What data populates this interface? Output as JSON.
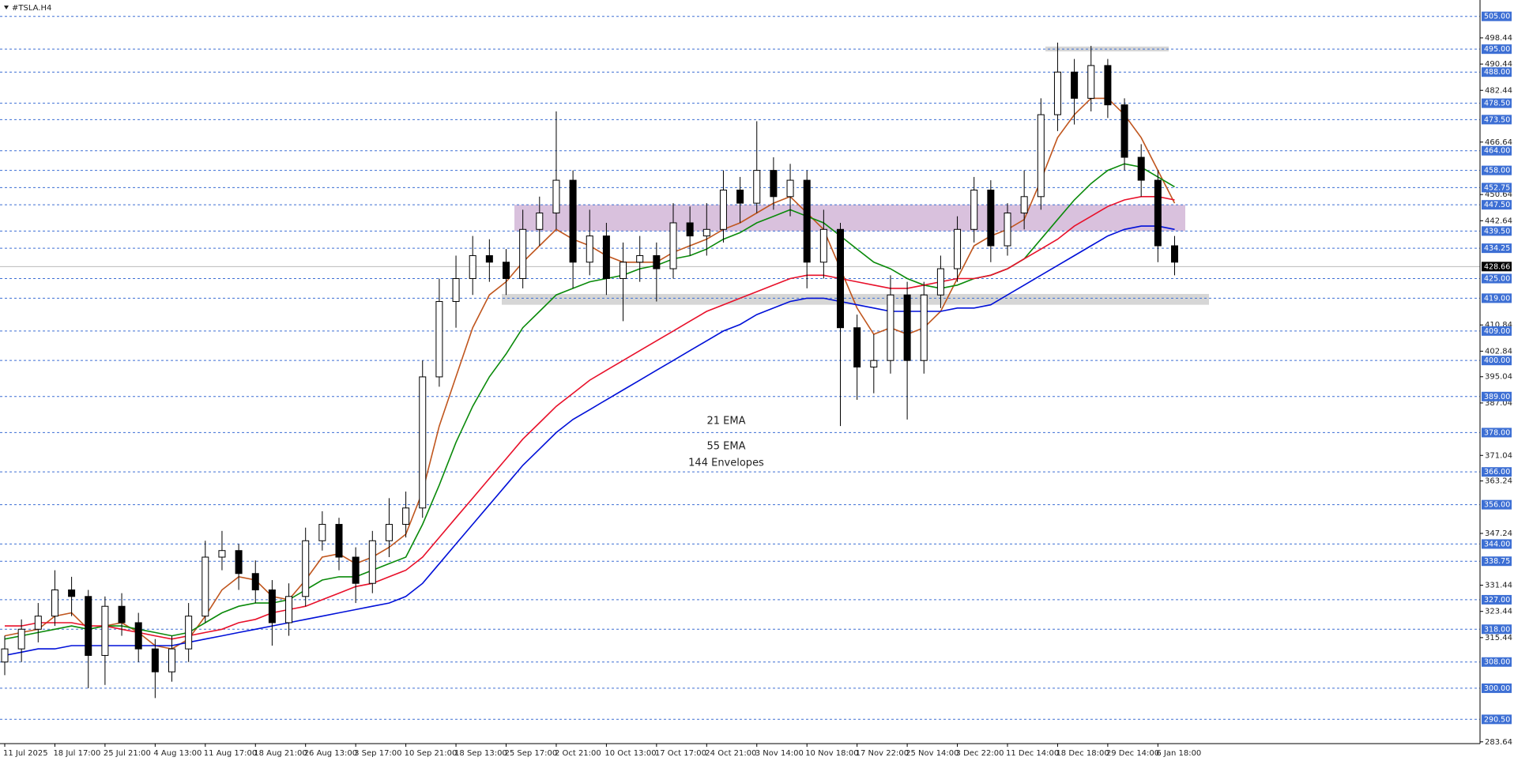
{
  "chart_data": {
    "type": "candlestick",
    "title": "#TSLA.H4",
    "categories": [
      "11 Jul 2025",
      null,
      null,
      "18 Jul 17:00",
      null,
      null,
      "25 Jul 21:00",
      null,
      null,
      "4 Aug 13:00",
      null,
      null,
      "11 Aug 17:00",
      null,
      null,
      "18 Aug 21:00",
      null,
      null,
      "26 Aug 13:00",
      null,
      null,
      "3 Sep 17:00",
      null,
      null,
      "10 Sep 21:00",
      null,
      null,
      "18 Sep 13:00",
      null,
      null,
      "25 Sep 17:00",
      null,
      null,
      "2 Oct 21:00",
      null,
      null,
      "10 Oct 13:00",
      null,
      null,
      "17 Oct 17:00",
      null,
      null,
      "24 Oct 21:00",
      null,
      null,
      "3 Nov 14:00",
      null,
      null,
      "10 Nov 18:00",
      null,
      null,
      "17 Nov 22:00",
      null,
      null,
      "25 Nov 14:00",
      null,
      null,
      "3 Dec 22:00",
      null,
      null,
      "11 Dec 14:00",
      null,
      null,
      "18 Dec 18:00",
      null,
      null,
      "29 Dec 14:00",
      null,
      null,
      "6 Jan 18:00",
      null
    ],
    "open": [
      308,
      312,
      318,
      322,
      330,
      328,
      310,
      325,
      320,
      312,
      305,
      312,
      322,
      340,
      342,
      335,
      330,
      320,
      328,
      345,
      350,
      340,
      332,
      345,
      350,
      355,
      395,
      418,
      425,
      432,
      430,
      425,
      440,
      445,
      455,
      430,
      438,
      425,
      430,
      432,
      428,
      442,
      438,
      440,
      452,
      448,
      458,
      450,
      455,
      430,
      440,
      410,
      398,
      400,
      420,
      400,
      420,
      428,
      440,
      452,
      435,
      445,
      450,
      475,
      488,
      480,
      490,
      478,
      462,
      455,
      435
    ],
    "high": [
      316,
      321,
      326,
      336,
      334,
      330,
      328,
      329,
      323,
      315,
      316,
      326,
      345,
      348,
      344,
      339,
      333,
      332,
      349,
      354,
      352,
      343,
      348,
      358,
      360,
      400,
      425,
      432,
      438,
      437,
      434,
      446,
      450,
      476,
      458,
      446,
      442,
      436,
      438,
      436,
      448,
      447,
      448,
      458,
      456,
      473,
      462,
      460,
      458,
      446,
      442,
      414,
      408,
      426,
      424,
      424,
      432,
      444,
      456,
      455,
      448,
      458,
      480,
      497,
      492,
      496,
      492,
      480,
      466,
      458,
      438
    ],
    "low": [
      304,
      308,
      314,
      319,
      322,
      300,
      301,
      316,
      308,
      297,
      302,
      308,
      320,
      336,
      330,
      326,
      313,
      316,
      325,
      342,
      336,
      326,
      329,
      340,
      346,
      352,
      392,
      410,
      420,
      424,
      420,
      422,
      435,
      440,
      422,
      426,
      420,
      412,
      424,
      418,
      425,
      432,
      432,
      436,
      442,
      445,
      446,
      444,
      422,
      425,
      380,
      388,
      390,
      396,
      382,
      396,
      416,
      424,
      436,
      430,
      432,
      440,
      446,
      470,
      472,
      476,
      474,
      458,
      450,
      430,
      426
    ],
    "close": [
      312,
      318,
      322,
      330,
      328,
      310,
      325,
      320,
      312,
      305,
      312,
      322,
      340,
      342,
      335,
      330,
      320,
      328,
      345,
      350,
      340,
      332,
      345,
      350,
      355,
      395,
      418,
      425,
      432,
      430,
      425,
      440,
      445,
      455,
      430,
      438,
      425,
      430,
      432,
      428,
      442,
      438,
      440,
      452,
      448,
      458,
      450,
      455,
      430,
      440,
      410,
      398,
      400,
      420,
      400,
      420,
      428,
      440,
      452,
      435,
      445,
      450,
      475,
      488,
      480,
      490,
      478,
      462,
      455,
      435,
      430
    ],
    "series": [
      {
        "name": "21 EMA",
        "color": "#c0561e",
        "values": [
          316,
          317,
          318,
          322,
          323,
          318,
          319,
          320,
          317,
          313,
          312,
          315,
          322,
          330,
          334,
          333,
          328,
          327,
          333,
          340,
          341,
          338,
          340,
          343,
          347,
          360,
          380,
          395,
          410,
          420,
          424,
          430,
          435,
          440,
          437,
          435,
          432,
          430,
          430,
          430,
          433,
          435,
          437,
          440,
          442,
          445,
          448,
          450,
          445,
          440,
          428,
          416,
          408,
          410,
          408,
          410,
          415,
          425,
          435,
          438,
          440,
          443,
          455,
          468,
          475,
          480,
          480,
          475,
          468,
          458,
          448
        ]
      },
      {
        "name": "55 EMA",
        "color": "#0a8a0a",
        "values": [
          315,
          316,
          317,
          318,
          319,
          318,
          319,
          319,
          318,
          317,
          316,
          317,
          320,
          323,
          325,
          326,
          326,
          327,
          330,
          333,
          334,
          334,
          336,
          338,
          340,
          350,
          362,
          375,
          386,
          395,
          402,
          410,
          415,
          420,
          422,
          424,
          425,
          426,
          428,
          429,
          431,
          432,
          434,
          437,
          439,
          442,
          444,
          446,
          444,
          442,
          438,
          434,
          430,
          428,
          425,
          423,
          422,
          423,
          425,
          426,
          428,
          431,
          437,
          443,
          449,
          454,
          458,
          460,
          459,
          456,
          453
        ]
      },
      {
        "name": "144 Envelopes",
        "color": "#e8102a",
        "values": [
          319,
          319,
          320,
          320,
          320,
          319,
          319,
          318,
          317,
          316,
          315,
          316,
          317,
          318,
          320,
          321,
          323,
          324,
          325,
          327,
          329,
          331,
          332,
          334,
          336,
          340,
          346,
          352,
          358,
          364,
          370,
          376,
          381,
          386,
          390,
          394,
          397,
          400,
          403,
          406,
          409,
          412,
          415,
          417,
          419,
          421,
          423,
          425,
          426,
          426,
          425,
          424,
          423,
          422,
          422,
          423,
          424,
          425,
          425,
          426,
          428,
          431,
          434,
          437,
          441,
          444,
          447,
          449,
          450,
          450,
          449
        ]
      },
      {
        "color": "#0010d8",
        "values": [
          310,
          311,
          312,
          312,
          313,
          313,
          313,
          313,
          313,
          313,
          313,
          314,
          315,
          316,
          317,
          318,
          319,
          320,
          321,
          322,
          323,
          324,
          325,
          326,
          328,
          332,
          338,
          344,
          350,
          356,
          362,
          368,
          373,
          378,
          382,
          385,
          388,
          391,
          394,
          397,
          400,
          403,
          406,
          409,
          411,
          414,
          416,
          418,
          419,
          419,
          418,
          417,
          416,
          415,
          415,
          415,
          415,
          416,
          416,
          417,
          420,
          423,
          426,
          429,
          432,
          435,
          438,
          440,
          441,
          441,
          440
        ]
      }
    ],
    "ylim": [
      283.1,
      507.1
    ],
    "yticks": [
      498.44,
      490.44,
      482.44,
      466.64,
      450.64,
      442.64,
      410.84,
      402.84,
      395.04,
      387.04,
      371.04,
      363.24,
      347.24,
      331.44,
      323.44,
      315.44,
      283.64
    ],
    "levels": [
      {
        "value": 505,
        "label": "505.00"
      },
      {
        "value": 495,
        "label": "495.00"
      },
      {
        "value": 488,
        "label": "488.00"
      },
      {
        "value": 478.5,
        "label": "478.50"
      },
      {
        "value": 473.5,
        "label": "473.50"
      },
      {
        "value": 464,
        "label": "464.00"
      },
      {
        "value": 458,
        "label": "458.00"
      },
      {
        "value": 452.75,
        "label": "452.75"
      },
      {
        "value": 447.5,
        "label": "447.50"
      },
      {
        "value": 439.5,
        "label": "439.50"
      },
      {
        "value": 434.25,
        "label": "434.25"
      },
      {
        "value": 425,
        "label": "425.00"
      },
      {
        "value": 419,
        "label": "419.00"
      },
      {
        "value": 409,
        "label": "409.00"
      },
      {
        "value": 400,
        "label": "400.00"
      },
      {
        "value": 389,
        "label": "389.00"
      },
      {
        "value": 378,
        "label": "378.00"
      },
      {
        "value": 366,
        "label": "366.00"
      },
      {
        "value": 356,
        "label": "356.00"
      },
      {
        "value": 344,
        "label": "344.00"
      },
      {
        "value": 338.75,
        "label": "338.75"
      },
      {
        "value": 327,
        "label": "327.00"
      },
      {
        "value": 318,
        "label": "318.00"
      },
      {
        "value": 308,
        "label": "308.00"
      },
      {
        "value": 300,
        "label": "300.00"
      },
      {
        "value": 290.5,
        "label": "290.50"
      }
    ],
    "level_color": "#3d6fd4",
    "last_price": 428.66,
    "zones": [
      {
        "low": 439.5,
        "high": 447.5,
        "color": "#d9c1dd"
      },
      {
        "low": 417,
        "high": 420.3,
        "color": "#d6d6d6"
      },
      {
        "low": 494.3,
        "high": 495.8,
        "color": "#d6d6d6"
      }
    ]
  }
}
